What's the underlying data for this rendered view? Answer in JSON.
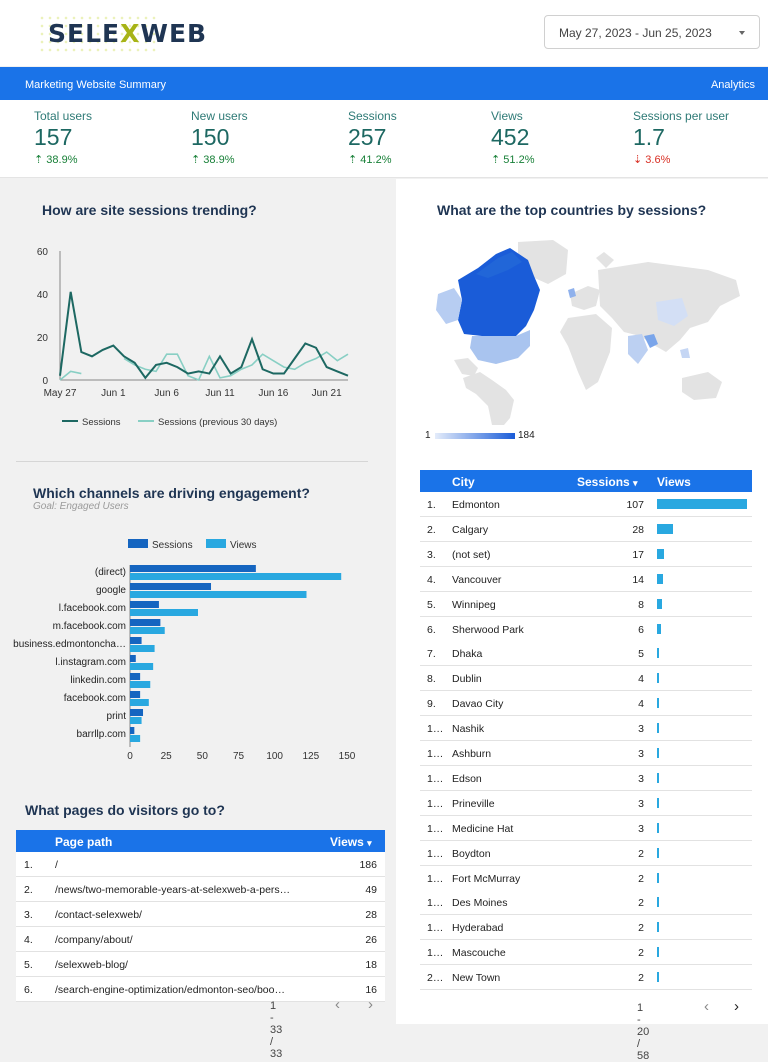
{
  "header": {
    "logo_text_a": "SELE",
    "logo_text_x": "X",
    "logo_text_b": "WEB",
    "date_range": "May 27, 2023 - Jun 25, 2023"
  },
  "bar": {
    "title": "Marketing Website Summary",
    "right": "Analytics"
  },
  "kpis": [
    {
      "label": "Total users",
      "value": "157",
      "arrow": "⇡",
      "change": "38.9%",
      "dir": "up"
    },
    {
      "label": "New users",
      "value": "150",
      "arrow": "⇡",
      "change": "38.9%",
      "dir": "up"
    },
    {
      "label": "Sessions",
      "value": "257",
      "arrow": "⇡",
      "change": "41.2%",
      "dir": "up"
    },
    {
      "label": "Views",
      "value": "452",
      "arrow": "⇡",
      "change": "51.2%",
      "dir": "up"
    },
    {
      "label": "Sessions per user",
      "value": "1.7",
      "arrow": "⇣",
      "change": "3.6%",
      "dir": "down"
    }
  ],
  "sessions_chart": {
    "heading": "How are site sessions trending?"
  },
  "channels_chart": {
    "heading": "Which channels are driving engagement?",
    "subheading": "Goal: Engaged Users"
  },
  "map": {
    "heading": "What are the top countries by sessions?",
    "legend_min": "1",
    "legend_max": "184"
  },
  "pages": {
    "heading": "What pages do visitors go to?",
    "col_path": "Page path",
    "col_views": "Views",
    "sort_icon": "▾",
    "rows": [
      {
        "n": "1.",
        "path": "/",
        "views": "186"
      },
      {
        "n": "2.",
        "path": "/news/two-memorable-years-at-selexweb-a-pers…",
        "views": "49"
      },
      {
        "n": "3.",
        "path": "/contact-selexweb/",
        "views": "28"
      },
      {
        "n": "4.",
        "path": "/company/about/",
        "views": "26"
      },
      {
        "n": "5.",
        "path": "/selexweb-blog/",
        "views": "18"
      },
      {
        "n": "6.",
        "path": "/search-engine-optimization/edmonton-seo/boo…",
        "views": "16"
      }
    ],
    "pager": "1 - 33 / 33"
  },
  "cities": {
    "col_city": "City",
    "col_sessions": "Sessions",
    "col_views": "Views",
    "sort_icon": "▾",
    "rows": [
      {
        "n": "1.",
        "city": "Edmonton",
        "sessions": "107"
      },
      {
        "n": "2.",
        "city": "Calgary",
        "sessions": "28"
      },
      {
        "n": "3.",
        "city": "(not set)",
        "sessions": "17"
      },
      {
        "n": "4.",
        "city": "Vancouver",
        "sessions": "14"
      },
      {
        "n": "5.",
        "city": "Winnipeg",
        "sessions": "8"
      },
      {
        "n": "6.",
        "city": "Sherwood Park",
        "sessions": "6"
      },
      {
        "n": "7.",
        "city": "Dhaka",
        "sessions": "5"
      },
      {
        "n": "8.",
        "city": "Dublin",
        "sessions": "4"
      },
      {
        "n": "9.",
        "city": "Davao City",
        "sessions": "4"
      },
      {
        "n": "1…",
        "city": "Nashik",
        "sessions": "3"
      },
      {
        "n": "1…",
        "city": "Ashburn",
        "sessions": "3"
      },
      {
        "n": "1…",
        "city": "Edson",
        "sessions": "3"
      },
      {
        "n": "1…",
        "city": "Prineville",
        "sessions": "3"
      },
      {
        "n": "1…",
        "city": "Medicine Hat",
        "sessions": "3"
      },
      {
        "n": "1…",
        "city": "Boydton",
        "sessions": "2"
      },
      {
        "n": "1…",
        "city": "Fort McMurray",
        "sessions": "2"
      },
      {
        "n": "1…",
        "city": "Des Moines",
        "sessions": "2"
      },
      {
        "n": "1…",
        "city": "Hyderabad",
        "sessions": "2"
      },
      {
        "n": "1…",
        "city": "Mascouche",
        "sessions": "2"
      },
      {
        "n": "2…",
        "city": "New Town",
        "sessions": "2"
      }
    ],
    "city_views": [
      100,
      18,
      8,
      7,
      5,
      4,
      2,
      1,
      1,
      1,
      1,
      1,
      1,
      1,
      1,
      1,
      1,
      1,
      1,
      1
    ],
    "pager": "1 - 20 / 58"
  },
  "colors": {
    "accent": "#1a73e8",
    "teal": "#1d6862",
    "teal_light": "#88cfc4",
    "dark_blue": "#1565c0",
    "light_blue": "#29a8e0"
  },
  "chart_data": [
    {
      "type": "line",
      "x_ticks": [
        "May 27",
        "Jun 1",
        "Jun 6",
        "Jun 11",
        "Jun 16",
        "Jun 21"
      ],
      "ylim": [
        0,
        60
      ],
      "y_ticks": [
        "0",
        "20",
        "40",
        "60"
      ],
      "legend_position": "bottom",
      "series": [
        {
          "name": "Sessions",
          "color": "#1d6862",
          "values": [
            2,
            41,
            13,
            11,
            14,
            16,
            11,
            8,
            1,
            7,
            8,
            6,
            3,
            4,
            3,
            11,
            3,
            6,
            19,
            5,
            3,
            3,
            10,
            17,
            15,
            6,
            4,
            2
          ]
        },
        {
          "name": "Sessions (previous 30 days)",
          "color": "#88cfc4",
          "values": [
            0,
            4,
            3,
            null,
            null,
            null,
            10,
            7,
            5,
            4,
            12,
            12,
            2,
            0,
            11,
            1,
            2,
            5,
            7,
            12,
            9,
            6,
            5,
            8,
            10,
            13,
            9,
            12
          ]
        }
      ]
    },
    {
      "type": "bar",
      "orientation": "horizontal",
      "categories": [
        "(direct)",
        "google",
        "l.facebook.com",
        "m.facebook.com",
        "business.edmontoncha…",
        "l.instagram.com",
        "linkedin.com",
        "facebook.com",
        "print",
        "barrllp.com"
      ],
      "xlim": [
        0,
        150
      ],
      "x_ticks": [
        "0",
        "25",
        "50",
        "75",
        "100",
        "125",
        "150"
      ],
      "legend_position": "top",
      "series": [
        {
          "name": "Sessions",
          "color": "#1565c0",
          "values": [
            87,
            56,
            20,
            21,
            8,
            4,
            7,
            7,
            9,
            3
          ]
        },
        {
          "name": "Views",
          "color": "#29a8e0",
          "values": [
            146,
            122,
            47,
            24,
            17,
            16,
            14,
            13,
            8,
            7
          ]
        }
      ]
    }
  ]
}
